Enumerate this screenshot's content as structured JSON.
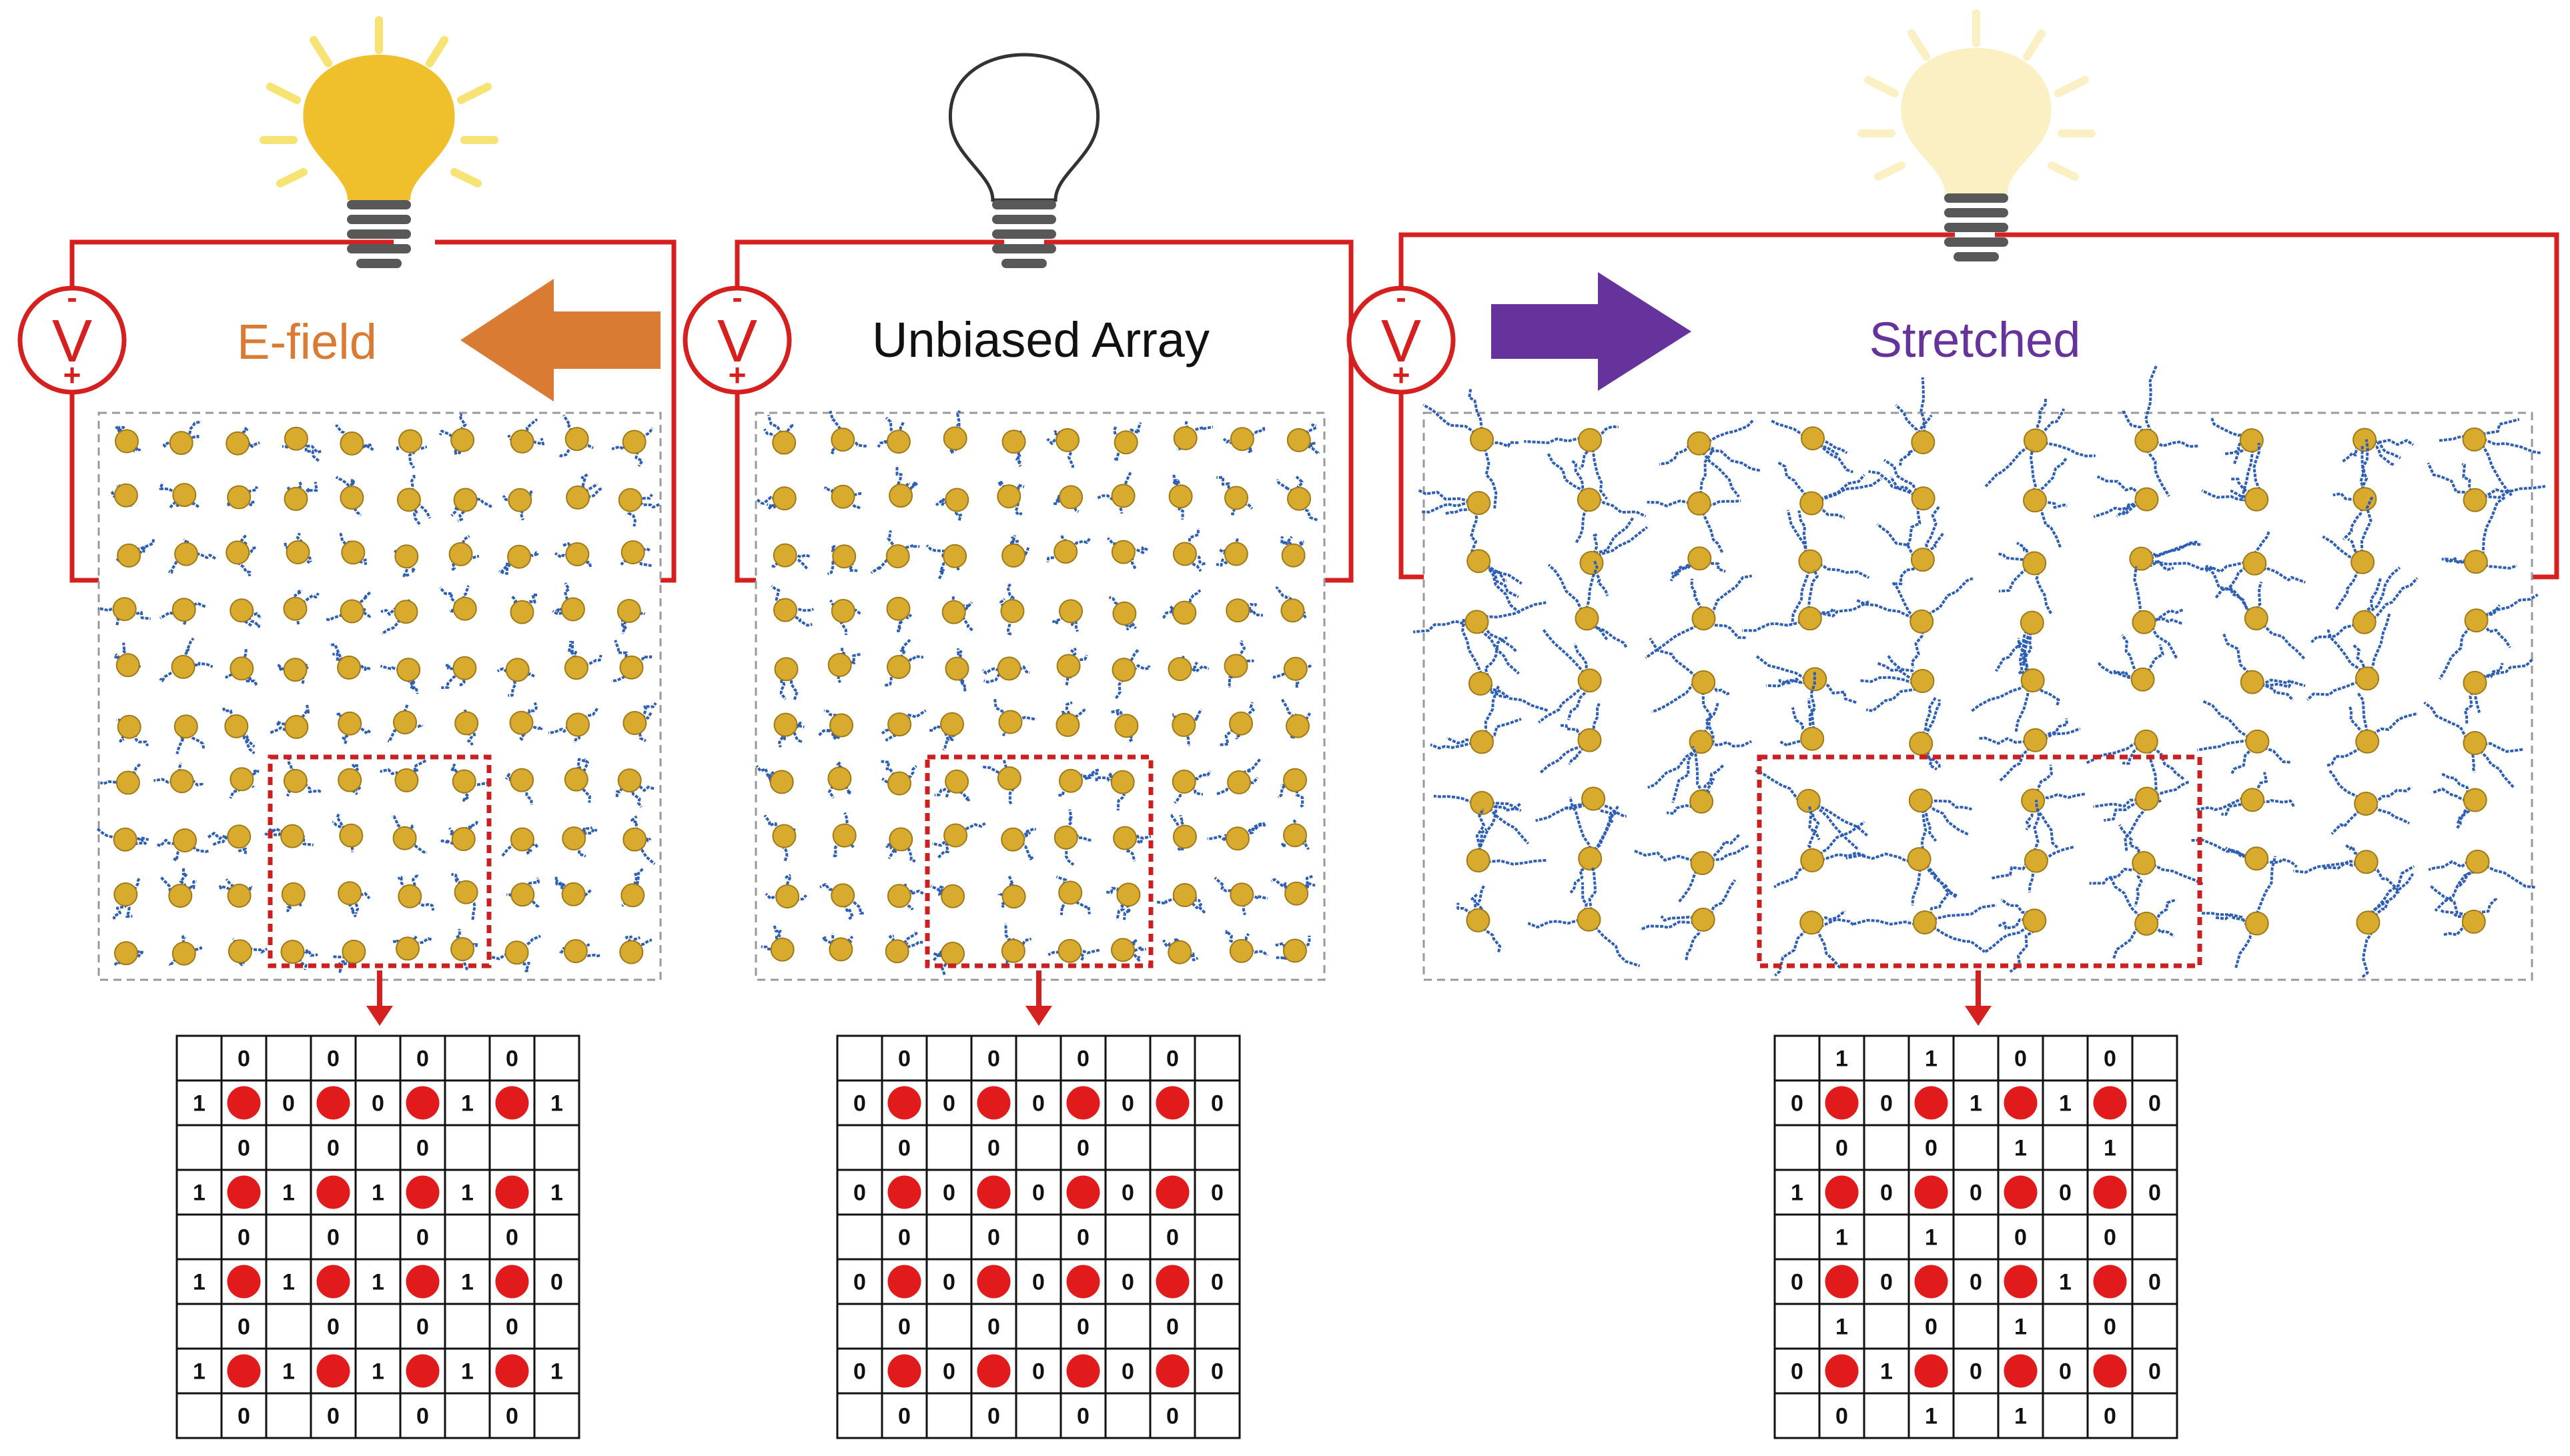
{
  "colors": {
    "wire": "#d61f1f",
    "bulb_bright": "#f0c02c",
    "bulb_dim": "#fbf0c4",
    "base": "#585858",
    "efield_arrow": "#d97b33",
    "stretch_arrow": "#65339b",
    "efield_label": "#d97b33",
    "stretch_label": "#65339b",
    "nanoparticle": "#d8aa2e",
    "ligand": "#2e5fb7",
    "roi_box": "#cc1f1f",
    "panel_border": "#999999",
    "grid_dot": "#e11b1b"
  },
  "panels": [
    {
      "id": "efield",
      "label": "E-field",
      "bulb_state": "bright",
      "arrow": "left",
      "voltmeter": {
        "symbol": "V",
        "minus": "-",
        "plus": "+"
      },
      "grid": {
        "rows": [
          [
            "",
            "0",
            "",
            "0",
            "",
            "0",
            "",
            "0",
            ""
          ],
          [
            "1",
            "●",
            "0",
            "●",
            "0",
            "●",
            "1",
            "●",
            "1"
          ],
          [
            "",
            "0",
            "",
            "0",
            "",
            "0",
            "",
            "",
            ""
          ],
          [
            "1",
            "●",
            "1",
            "●",
            "1",
            "●",
            "1",
            "●",
            "1"
          ],
          [
            "",
            "0",
            "",
            "0",
            "",
            "0",
            "",
            "0",
            ""
          ],
          [
            "1",
            "●",
            "1",
            "●",
            "1",
            "●",
            "1",
            "●",
            "0"
          ],
          [
            "",
            "0",
            "",
            "0",
            "",
            "0",
            "",
            "0",
            ""
          ],
          [
            "1",
            "●",
            "1",
            "●",
            "1",
            "●",
            "1",
            "●",
            "1"
          ],
          [
            "",
            "0",
            "",
            "0",
            "",
            "0",
            "",
            "0",
            ""
          ]
        ]
      }
    },
    {
      "id": "unbiased",
      "label": "Unbiased Array",
      "bulb_state": "off",
      "arrow": "none",
      "voltmeter": {
        "symbol": "V",
        "minus": "-",
        "plus": "+"
      },
      "grid": {
        "rows": [
          [
            "",
            "0",
            "",
            "0",
            "",
            "0",
            "",
            "0",
            ""
          ],
          [
            "0",
            "●",
            "0",
            "●",
            "0",
            "●",
            "0",
            "●",
            "0"
          ],
          [
            "",
            "0",
            "",
            "0",
            "",
            "0",
            "",
            "",
            ""
          ],
          [
            "0",
            "●",
            "0",
            "●",
            "0",
            "●",
            "0",
            "●",
            "0"
          ],
          [
            "",
            "0",
            "",
            "0",
            "",
            "0",
            "",
            "0",
            ""
          ],
          [
            "0",
            "●",
            "0",
            "●",
            "0",
            "●",
            "0",
            "●",
            "0"
          ],
          [
            "",
            "0",
            "",
            "0",
            "",
            "0",
            "",
            "0",
            ""
          ],
          [
            "0",
            "●",
            "0",
            "●",
            "0",
            "●",
            "0",
            "●",
            "0"
          ],
          [
            "",
            "0",
            "",
            "0",
            "",
            "0",
            "",
            "0",
            ""
          ]
        ]
      }
    },
    {
      "id": "stretched",
      "label": "Stretched",
      "bulb_state": "dim",
      "arrow": "right",
      "voltmeter": {
        "symbol": "V",
        "minus": "-",
        "plus": "+"
      },
      "grid": {
        "rows": [
          [
            "",
            "1",
            "",
            "1",
            "",
            "0",
            "",
            "0",
            ""
          ],
          [
            "0",
            "●",
            "0",
            "●",
            "1",
            "●",
            "1",
            "●",
            "0"
          ],
          [
            "",
            "0",
            "",
            "0",
            "",
            "1",
            "",
            "1",
            ""
          ],
          [
            "1",
            "●",
            "0",
            "●",
            "0",
            "●",
            "0",
            "●",
            "0"
          ],
          [
            "",
            "1",
            "",
            "1",
            "",
            "0",
            "",
            "0",
            ""
          ],
          [
            "0",
            "●",
            "0",
            "●",
            "0",
            "●",
            "1",
            "●",
            "0"
          ],
          [
            "",
            "1",
            "",
            "0",
            "",
            "1",
            "",
            "0",
            ""
          ],
          [
            "0",
            "●",
            "1",
            "●",
            "0",
            "●",
            "0",
            "●",
            "0"
          ],
          [
            "",
            "0",
            "",
            "1",
            "",
            "1",
            "",
            "0",
            ""
          ]
        ]
      }
    }
  ]
}
